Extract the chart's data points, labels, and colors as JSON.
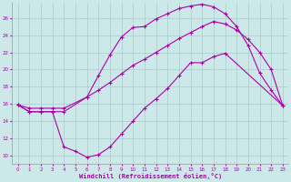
{
  "xlabel": "Windchill (Refroidissement éolien,°C)",
  "background_color": "#cce8e8",
  "grid_color": "#aacccc",
  "line_color": "#aa00aa",
  "xlim": [
    -0.5,
    23.5
  ],
  "ylim": [
    9.0,
    27.8
  ],
  "xticks": [
    0,
    1,
    2,
    3,
    4,
    5,
    6,
    7,
    8,
    9,
    10,
    11,
    12,
    13,
    14,
    15,
    16,
    17,
    18,
    19,
    20,
    21,
    22,
    23
  ],
  "yticks": [
    10,
    12,
    14,
    16,
    18,
    20,
    22,
    24,
    26
  ],
  "curve1_x": [
    0,
    1,
    2,
    3,
    4,
    5,
    6,
    7,
    8,
    9,
    10,
    11,
    12,
    13,
    14,
    15,
    16,
    17,
    18,
    23
  ],
  "curve1_y": [
    15.9,
    15.1,
    15.1,
    15.1,
    11.0,
    10.5,
    9.8,
    10.1,
    11.0,
    12.5,
    14.0,
    15.5,
    16.6,
    17.8,
    19.3,
    20.8,
    20.8,
    21.5,
    21.9,
    15.8
  ],
  "curve2_x": [
    0,
    1,
    2,
    3,
    4,
    6,
    7,
    8,
    9,
    10,
    11,
    12,
    13,
    14,
    15,
    16,
    17,
    18,
    19,
    20,
    21,
    22,
    23
  ],
  "curve2_y": [
    15.9,
    15.1,
    15.1,
    15.1,
    15.1,
    16.8,
    19.3,
    21.7,
    23.8,
    24.9,
    25.0,
    25.9,
    26.5,
    27.1,
    27.4,
    27.6,
    27.3,
    26.5,
    25.0,
    22.8,
    19.6,
    17.6,
    15.8
  ],
  "curve3_x": [
    0,
    1,
    2,
    3,
    4,
    6,
    7,
    8,
    9,
    10,
    11,
    12,
    13,
    14,
    15,
    16,
    17,
    18,
    19,
    20,
    21,
    22,
    23
  ],
  "curve3_y": [
    15.9,
    15.5,
    15.5,
    15.5,
    15.5,
    16.8,
    17.6,
    18.5,
    19.5,
    20.5,
    21.2,
    22.0,
    22.8,
    23.6,
    24.3,
    25.0,
    25.6,
    25.3,
    24.6,
    23.5,
    22.0,
    20.0,
    15.8
  ]
}
